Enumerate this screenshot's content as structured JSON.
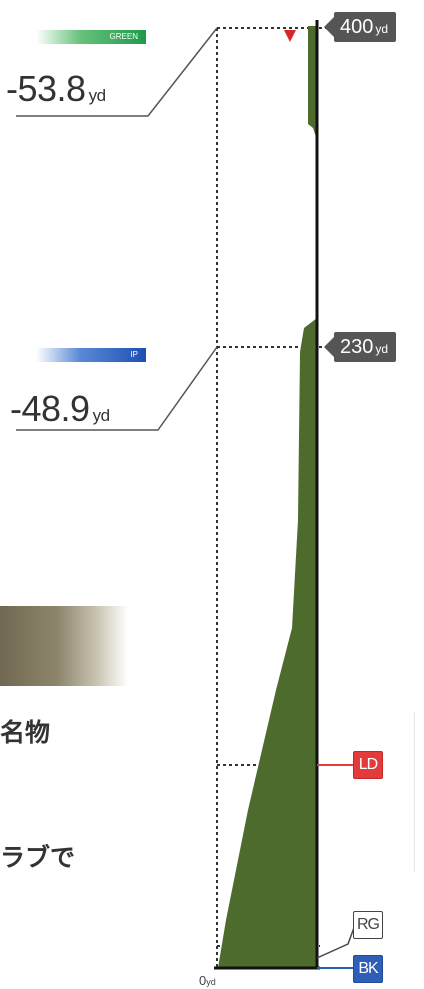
{
  "markers": {
    "green": {
      "badge": "GREEN",
      "distance": "-53.8",
      "unit": "yd"
    },
    "ip": {
      "badge": "IP",
      "distance": "-48.9",
      "unit": "yd"
    }
  },
  "scale": {
    "top": {
      "value": "400",
      "unit": "yd"
    },
    "mid": {
      "value": "230",
      "unit": "yd"
    },
    "zero": {
      "value": "0",
      "unit": "yd"
    }
  },
  "labels": {
    "ld": "LD",
    "rg": "RG",
    "bk": "BK"
  },
  "text_fragments": [
    "名物",
    "ラブで"
  ],
  "colors": {
    "fairway_fill": "#4c6b2d",
    "pin_marker": "#d62828",
    "ld_line": "#e33b3b",
    "bk_line": "#2e5eb8",
    "rg_line": "#444444",
    "badge_green": "#1f9a4a",
    "badge_blue": "#1e4fb3",
    "tag_bg": "#555555"
  }
}
